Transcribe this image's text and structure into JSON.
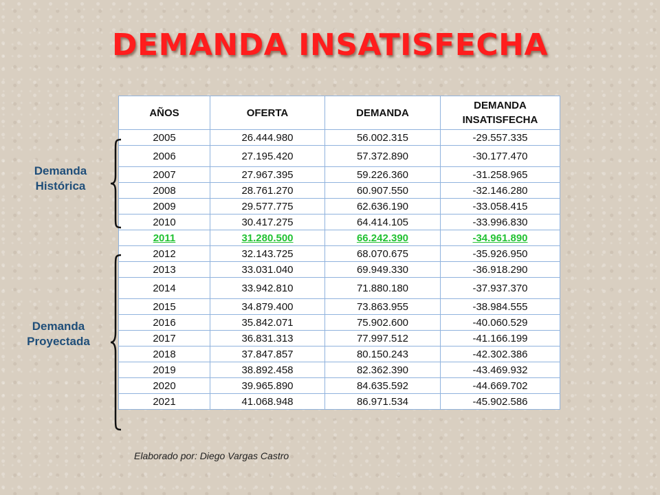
{
  "title": "DEMANDA INSATISFECHA",
  "table": {
    "headers": [
      "AÑOS",
      "OFERTA",
      "DEMANDA",
      "DEMANDA INSATISFECHA"
    ],
    "rows": [
      [
        "2005",
        "26.444.980",
        "56.002.315",
        "-29.557.335"
      ],
      [
        "2006",
        "27.195.420",
        "57.372.890",
        "-30.177.470"
      ],
      [
        "2007",
        "27.967.395",
        "59.226.360",
        "-31.258.965"
      ],
      [
        "2008",
        "28.761.270",
        "60.907.550",
        "-32.146.280"
      ],
      [
        "2009",
        "29.577.775",
        "62.636.190",
        "-33.058.415"
      ],
      [
        "2010",
        "30.417.275",
        "64.414.105",
        "-33.996.830"
      ],
      [
        "2011",
        "31.280.500",
        "66.242.390",
        "-34.961.890"
      ],
      [
        "2012",
        "32.143.725",
        "68.070.675",
        "-35.926.950"
      ],
      [
        "2013",
        "33.031.040",
        "69.949.330",
        "-36.918.290"
      ],
      [
        "2014",
        "33.942.810",
        "71.880.180",
        "-37.937.370"
      ],
      [
        "2015",
        "34.879.400",
        "73.863.955",
        "-38.984.555"
      ],
      [
        "2016",
        "35.842.071",
        "75.902.600",
        "-40.060.529"
      ],
      [
        "2017",
        "36.831.313",
        "77.997.512",
        "-41.166.199"
      ],
      [
        "2018",
        "37.847.857",
        "80.150.243",
        "-42.302.386"
      ],
      [
        "2019",
        "38.892.458",
        "82.362.390",
        "-43.469.932"
      ],
      [
        "2020",
        "39.965.890",
        "84.635.592",
        "-44.669.702"
      ],
      [
        "2021",
        "41.068.948",
        "86.971.534",
        "-45.902.586"
      ]
    ],
    "highlight_year": "2011",
    "highlight_color": "#22c233"
  },
  "labels": {
    "historic_line1": "Demanda",
    "historic_line2": "Histórica",
    "projected_line1": "Demanda",
    "projected_line2": "Proyectada"
  },
  "credit": "Elaborado por: Diego Vargas Castro",
  "colors": {
    "title": "#ff1d1d",
    "label": "#1f4e79",
    "table_border": "#8fb2dd"
  }
}
